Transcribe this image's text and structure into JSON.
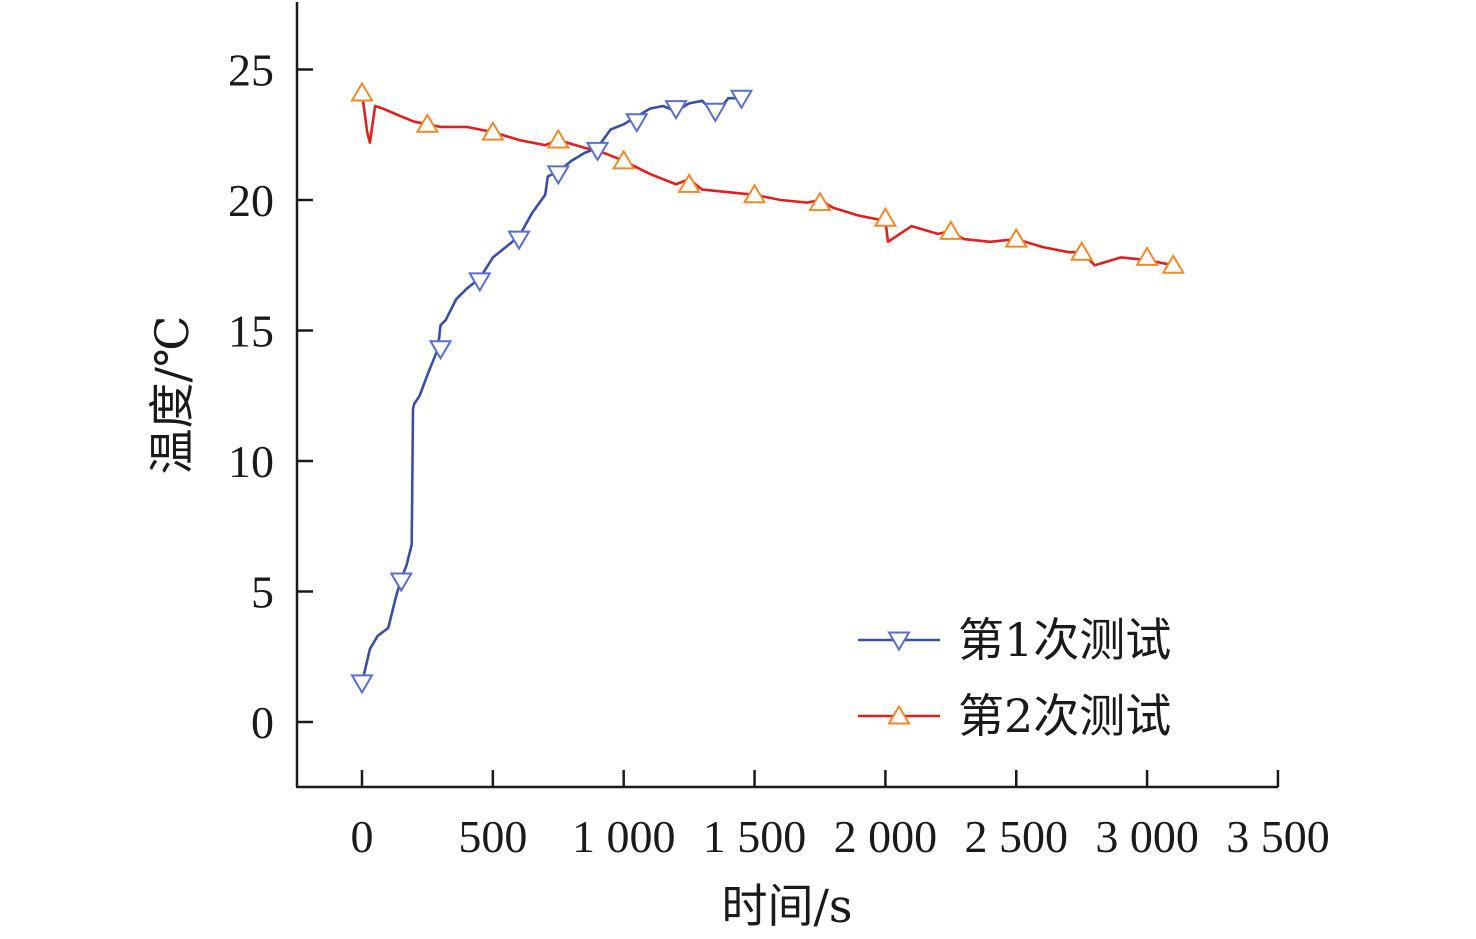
{
  "chart_data": {
    "type": "line",
    "xlabel": "时间/s",
    "ylabel": "温度/℃",
    "xlim": [
      -250,
      3500
    ],
    "ylim": [
      -2.5,
      27.5
    ],
    "x_ticks": [
      0,
      500,
      1000,
      1500,
      2000,
      2500,
      3000,
      3500
    ],
    "x_tick_labels": [
      "0",
      "500",
      "1 000",
      "1 500",
      "2 000",
      "2 500",
      "3 000",
      "3 500"
    ],
    "y_ticks": [
      0,
      5,
      10,
      15,
      20,
      25
    ],
    "y_tick_labels": [
      "0",
      "5",
      "10",
      "15",
      "20",
      "25"
    ],
    "grid": false,
    "legend_position": "bottom-right",
    "series": [
      {
        "name": "第1次测试",
        "color": "#3a4fa0",
        "marker_color": "#5a6fc8",
        "marker": "triangle-down",
        "x": [
          0,
          30,
          60,
          100,
          130,
          150,
          170,
          190,
          195,
          200,
          220,
          250,
          290,
          300,
          320,
          360,
          400,
          450,
          500,
          550,
          600,
          650,
          700,
          710,
          750,
          800,
          850,
          900,
          950,
          1000,
          1050,
          1100,
          1150,
          1200,
          1250,
          1300,
          1350,
          1400,
          1450
        ],
        "y": [
          1.5,
          2.8,
          3.3,
          3.6,
          4.8,
          5.5,
          6.0,
          6.8,
          12.0,
          12.2,
          12.5,
          13.3,
          14.3,
          15.2,
          15.4,
          16.2,
          16.6,
          17.0,
          17.8,
          18.2,
          18.6,
          19.5,
          20.2,
          20.9,
          21.1,
          21.5,
          21.8,
          22.0,
          22.7,
          22.9,
          23.2,
          23.5,
          23.6,
          23.4,
          23.7,
          23.8,
          23.3,
          23.9,
          23.9
        ],
        "marker_x": [
          0,
          150,
          300,
          450,
          600,
          750,
          900,
          1050,
          1200,
          1350,
          1450
        ],
        "marker_y": [
          1.5,
          5.4,
          14.3,
          16.9,
          18.5,
          21.0,
          21.9,
          23.0,
          23.5,
          23.4,
          23.9
        ]
      },
      {
        "name": "第2次测试",
        "color": "#e02020",
        "marker_color": "#ee8a2a",
        "marker": "triangle-up",
        "x": [
          0,
          20,
          30,
          50,
          80,
          150,
          200,
          250,
          300,
          400,
          500,
          600,
          700,
          750,
          850,
          900,
          950,
          1000,
          1100,
          1200,
          1250,
          1300,
          1400,
          1500,
          1600,
          1700,
          1750,
          1800,
          1900,
          2000,
          2010,
          2100,
          2200,
          2250,
          2300,
          2400,
          2500,
          2600,
          2700,
          2750,
          2800,
          2900,
          3000,
          3100
        ],
        "y": [
          24.1,
          22.6,
          22.2,
          23.6,
          23.5,
          23.2,
          23.0,
          22.9,
          22.8,
          22.8,
          22.6,
          22.3,
          22.1,
          22.3,
          22.0,
          21.9,
          21.7,
          21.5,
          21.0,
          20.6,
          20.8,
          20.4,
          20.3,
          20.2,
          20.0,
          19.9,
          20.0,
          19.7,
          19.4,
          19.2,
          18.4,
          19.0,
          18.7,
          18.8,
          18.5,
          18.4,
          18.5,
          18.2,
          18.0,
          18.0,
          17.5,
          17.8,
          17.7,
          17.5
        ],
        "marker_x": [
          0,
          250,
          500,
          750,
          1000,
          1250,
          1500,
          1750,
          2000,
          2250,
          2500,
          2750,
          3000,
          3100
        ],
        "marker_y": [
          24.1,
          22.9,
          22.6,
          22.3,
          21.5,
          20.6,
          20.2,
          19.9,
          19.3,
          18.8,
          18.5,
          18.0,
          17.8,
          17.5
        ]
      }
    ]
  }
}
